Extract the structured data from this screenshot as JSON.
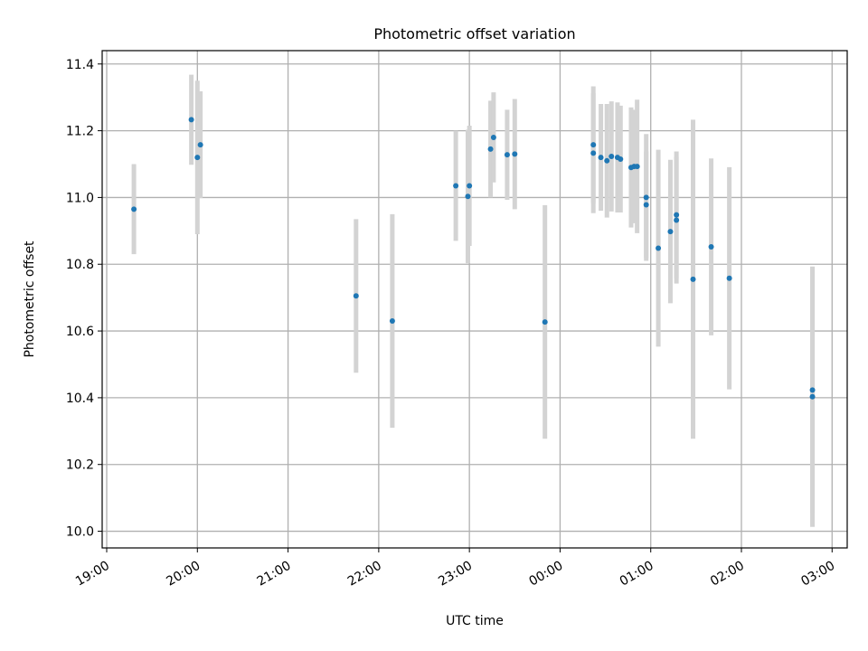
{
  "chart_data": {
    "type": "scatter",
    "title": "Photometric offset variation",
    "xlabel": "UTC time",
    "ylabel": "Photometric offset",
    "xlim": [
      "2000-01-01T18:57",
      "2000-01-02T03:10"
    ],
    "ylim": [
      9.95,
      11.44
    ],
    "x_ticks": [
      {
        "time": "2000-01-01T19:00",
        "label": "19:00"
      },
      {
        "time": "2000-01-01T20:00",
        "label": "20:00"
      },
      {
        "time": "2000-01-01T21:00",
        "label": "21:00"
      },
      {
        "time": "2000-01-01T22:00",
        "label": "22:00"
      },
      {
        "time": "2000-01-01T23:00",
        "label": "23:00"
      },
      {
        "time": "2000-01-02T00:00",
        "label": "00:00"
      },
      {
        "time": "2000-01-02T01:00",
        "label": "01:00"
      },
      {
        "time": "2000-01-02T02:00",
        "label": "02:00"
      },
      {
        "time": "2000-01-02T03:00",
        "label": "03:00"
      }
    ],
    "y_ticks": [
      {
        "value": 10.0,
        "label": "10.0"
      },
      {
        "value": 10.2,
        "label": "10.2"
      },
      {
        "value": 10.4,
        "label": "10.4"
      },
      {
        "value": 10.6,
        "label": "10.6"
      },
      {
        "value": 10.8,
        "label": "10.8"
      },
      {
        "value": 11.0,
        "label": "11.0"
      },
      {
        "value": 11.2,
        "label": "11.2"
      },
      {
        "value": 11.4,
        "label": "11.4"
      }
    ],
    "grid": true,
    "colors": {
      "point": "#1f77b4",
      "errorbar": "#d3d3d3",
      "grid": "#b0b0b0"
    },
    "points": [
      {
        "t": "2000-01-01T19:18",
        "y": 10.965,
        "err": 0.135
      },
      {
        "t": "2000-01-01T19:56",
        "y": 11.233,
        "err": 0.135
      },
      {
        "t": "2000-01-01T20:00",
        "y": 11.12,
        "err": 0.23
      },
      {
        "t": "2000-01-01T20:02",
        "y": 11.158,
        "err": 0.16
      },
      {
        "t": "2000-01-01T21:45",
        "y": 10.705,
        "err": 0.23
      },
      {
        "t": "2000-01-01T22:09",
        "y": 10.63,
        "err": 0.32
      },
      {
        "t": "2000-01-01T22:51",
        "y": 11.035,
        "err": 0.165
      },
      {
        "t": "2000-01-01T22:59",
        "y": 11.003,
        "err": 0.2
      },
      {
        "t": "2000-01-01T23:00",
        "y": 11.035,
        "err": 0.18
      },
      {
        "t": "2000-01-01T23:14",
        "y": 11.145,
        "err": 0.145
      },
      {
        "t": "2000-01-01T23:16",
        "y": 11.18,
        "err": 0.135
      },
      {
        "t": "2000-01-01T23:25",
        "y": 11.128,
        "err": 0.135
      },
      {
        "t": "2000-01-01T23:30",
        "y": 11.13,
        "err": 0.165
      },
      {
        "t": "2000-01-01T23:50",
        "y": 10.627,
        "err": 0.35
      },
      {
        "t": "2000-01-02T00:22",
        "y": 11.133,
        "err": 0.18
      },
      {
        "t": "2000-01-02T00:22",
        "y": 11.158,
        "err": 0.175
      },
      {
        "t": "2000-01-02T00:27",
        "y": 11.12,
        "err": 0.16
      },
      {
        "t": "2000-01-02T00:31",
        "y": 11.11,
        "err": 0.17
      },
      {
        "t": "2000-01-02T00:34",
        "y": 11.123,
        "err": 0.165
      },
      {
        "t": "2000-01-02T00:38",
        "y": 11.12,
        "err": 0.165
      },
      {
        "t": "2000-01-02T00:40",
        "y": 11.115,
        "err": 0.16
      },
      {
        "t": "2000-01-02T00:47",
        "y": 11.09,
        "err": 0.18
      },
      {
        "t": "2000-01-02T00:49",
        "y": 11.093,
        "err": 0.17
      },
      {
        "t": "2000-01-02T00:51",
        "y": 11.093,
        "err": 0.2
      },
      {
        "t": "2000-01-02T00:57",
        "y": 11.0,
        "err": 0.19
      },
      {
        "t": "2000-01-02T00:57",
        "y": 10.978,
        "err": 0.16
      },
      {
        "t": "2000-01-02T01:05",
        "y": 10.848,
        "err": 0.295
      },
      {
        "t": "2000-01-02T01:13",
        "y": 10.898,
        "err": 0.215
      },
      {
        "t": "2000-01-02T01:17",
        "y": 10.948,
        "err": 0.19
      },
      {
        "t": "2000-01-02T01:17",
        "y": 10.932,
        "err": 0.19
      },
      {
        "t": "2000-01-02T01:28",
        "y": 10.755,
        "err": 0.478
      },
      {
        "t": "2000-01-02T01:40",
        "y": 10.852,
        "err": 0.265
      },
      {
        "t": "2000-01-02T01:52",
        "y": 10.758,
        "err": 0.333
      },
      {
        "t": "2000-01-02T02:47",
        "y": 10.423,
        "err": 0.37
      },
      {
        "t": "2000-01-02T02:47",
        "y": 10.403,
        "err": 0.39
      }
    ]
  }
}
